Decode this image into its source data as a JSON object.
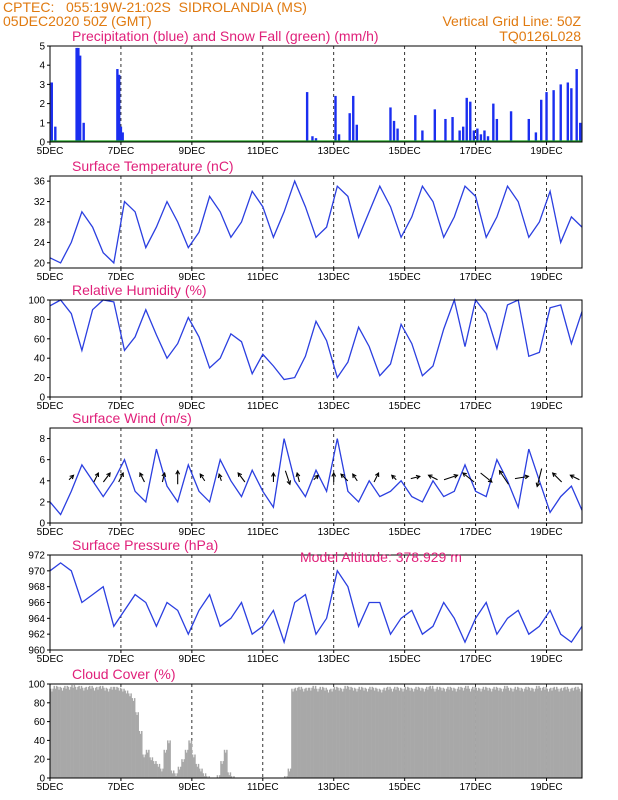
{
  "header": {
    "line1_left": "CPTEC:   055:19W-21:02S  SIDROLANDIA (MS)",
    "line2_left": "05DEC2020 50Z (GMT)",
    "line1_right": "Vertical Grid Line: 50Z",
    "line2_right": "TQ0126L028",
    "model_altitude": "Model Altitude: 378.929 m"
  },
  "colors": {
    "header": "#e07a10",
    "title": "#e0207a",
    "line": "#2b3fe0",
    "precip": "#1a2ef0",
    "snow": "#1aa01a",
    "cloud": "#a8a8a8",
    "arrow": "#000000"
  },
  "x_axis": {
    "ticks": [
      "5DEC",
      "7DEC",
      "9DEC",
      "11DEC",
      "13DEC",
      "15DEC",
      "17DEC",
      "19DEC"
    ],
    "range_days": [
      5,
      20
    ]
  },
  "chart_data": [
    {
      "type": "bar",
      "title": "Precipitation (blue) and Snow Fall (green) (mm/h)",
      "ylim": [
        0,
        5
      ],
      "yticks": [
        "0",
        "1",
        "2",
        "3",
        "4",
        "5"
      ],
      "series": [
        {
          "name": "Precipitation",
          "x": [
            5.05,
            5.15,
            5.75,
            5.8,
            5.85,
            5.95,
            6.9,
            6.95,
            7.0,
            7.05,
            12.25,
            12.4,
            12.5,
            13.05,
            13.15,
            13.45,
            13.55,
            13.65,
            14.6,
            14.7,
            14.8,
            15.3,
            15.5,
            15.85,
            16.15,
            16.35,
            16.55,
            16.65,
            16.75,
            16.85,
            16.95,
            17.05,
            17.15,
            17.25,
            17.35,
            17.5,
            17.6,
            18.0,
            18.5,
            18.7,
            18.85,
            19.0,
            19.2,
            19.4,
            19.6,
            19.7,
            19.85,
            19.95
          ],
          "values": [
            3.1,
            0.8,
            4.9,
            4.9,
            4.5,
            1.0,
            3.8,
            3.5,
            0.8,
            0.5,
            2.6,
            0.3,
            0.2,
            2.4,
            0.4,
            1.5,
            2.4,
            0.9,
            1.8,
            1.1,
            0.7,
            1.4,
            0.6,
            1.7,
            1.2,
            1.3,
            0.6,
            0.8,
            2.3,
            2.1,
            0.6,
            0.7,
            0.4,
            0.6,
            0.3,
            2.0,
            1.2,
            1.6,
            1.2,
            0.5,
            2.2,
            2.6,
            2.7,
            3.0,
            3.1,
            2.8,
            3.8,
            1.0
          ]
        },
        {
          "name": "Snow Fall",
          "x": [],
          "values": []
        }
      ]
    },
    {
      "type": "line",
      "title": "Surface Temperature (nC)",
      "ylim": [
        19,
        37
      ],
      "yticks": [
        "20",
        "24",
        "28",
        "32",
        "36"
      ],
      "x": [
        5.0,
        5.3,
        5.6,
        5.9,
        6.2,
        6.5,
        6.8,
        7.1,
        7.4,
        7.7,
        8.0,
        8.3,
        8.6,
        8.9,
        9.2,
        9.5,
        9.8,
        10.1,
        10.4,
        10.7,
        11.0,
        11.3,
        11.6,
        11.9,
        12.2,
        12.5,
        12.8,
        13.1,
        13.4,
        13.7,
        14.0,
        14.3,
        14.6,
        14.9,
        15.2,
        15.5,
        15.8,
        16.1,
        16.4,
        16.7,
        17.0,
        17.3,
        17.6,
        17.9,
        18.2,
        18.5,
        18.8,
        19.1,
        19.4,
        19.7,
        20.0
      ],
      "values": [
        21,
        20,
        24,
        30,
        27,
        22,
        20,
        32,
        30,
        23,
        27,
        32,
        28,
        23,
        26,
        33,
        30,
        25,
        28,
        34,
        31,
        25,
        30,
        36,
        31,
        25,
        27,
        35,
        33,
        25,
        30,
        35,
        31,
        25,
        29,
        35,
        32,
        25,
        29,
        35,
        33,
        25,
        29,
        35,
        32,
        25,
        28,
        34,
        24,
        29,
        27
      ]
    },
    {
      "type": "line",
      "title": "Relative Humidity (%)",
      "ylim": [
        0,
        100
      ],
      "yticks": [
        "0",
        "20",
        "40",
        "60",
        "80",
        "100"
      ],
      "x": [
        5.0,
        5.3,
        5.6,
        5.9,
        6.2,
        6.5,
        6.8,
        7.1,
        7.4,
        7.7,
        8.0,
        8.3,
        8.6,
        8.9,
        9.2,
        9.5,
        9.8,
        10.1,
        10.4,
        10.7,
        11.0,
        11.3,
        11.6,
        11.9,
        12.2,
        12.5,
        12.8,
        13.1,
        13.4,
        13.7,
        14.0,
        14.3,
        14.6,
        14.9,
        15.2,
        15.5,
        15.8,
        16.1,
        16.4,
        16.7,
        17.0,
        17.3,
        17.6,
        17.9,
        18.2,
        18.5,
        18.8,
        19.1,
        19.4,
        19.7,
        20.0
      ],
      "values": [
        94,
        100,
        86,
        48,
        90,
        100,
        98,
        48,
        62,
        90,
        64,
        40,
        55,
        82,
        62,
        30,
        40,
        65,
        57,
        24,
        44,
        32,
        18,
        20,
        42,
        78,
        58,
        20,
        36,
        72,
        52,
        22,
        34,
        75,
        55,
        22,
        32,
        70,
        100,
        52,
        100,
        86,
        50,
        95,
        100,
        42,
        46,
        92,
        95,
        55,
        88
      ]
    },
    {
      "type": "line",
      "title": "Surface Wind (m/s)",
      "ylim": [
        0,
        9
      ],
      "yticks": [
        "0",
        "2",
        "4",
        "6",
        "8"
      ],
      "x": [
        5.0,
        5.3,
        5.6,
        5.9,
        6.2,
        6.5,
        6.8,
        7.1,
        7.4,
        7.7,
        8.0,
        8.3,
        8.6,
        8.9,
        9.2,
        9.5,
        9.8,
        10.1,
        10.4,
        10.7,
        11.0,
        11.3,
        11.6,
        11.9,
        12.2,
        12.5,
        12.8,
        13.1,
        13.4,
        13.7,
        14.0,
        14.3,
        14.6,
        14.9,
        15.2,
        15.5,
        15.8,
        16.1,
        16.4,
        16.7,
        17.0,
        17.3,
        17.6,
        17.9,
        18.2,
        18.5,
        18.8,
        19.1,
        19.4,
        19.7,
        20.0
      ],
      "values": [
        2,
        0.8,
        3,
        5.5,
        4,
        2.5,
        4,
        6,
        3,
        2,
        7,
        3.5,
        2,
        5.5,
        3,
        2,
        6,
        4,
        2.5,
        5,
        3,
        1.5,
        8,
        4,
        2.5,
        5,
        3,
        8,
        3,
        2,
        4,
        2.5,
        3,
        4,
        2.5,
        2,
        4,
        2.5,
        3,
        5.5,
        3,
        2.5,
        6,
        4,
        1.5,
        7,
        4,
        1,
        2.5,
        3.5,
        1.2
      ],
      "arrows": {
        "x": [
          5.6,
          6.3,
          6.6,
          7.0,
          7.6,
          8.2,
          8.6,
          9.3,
          9.8,
          10.4,
          11.3,
          11.7,
          12.0,
          12.5,
          13.0,
          13.3,
          13.6,
          14.2,
          14.7,
          15.3,
          15.8,
          16.3,
          16.8,
          17.3,
          17.8,
          18.3,
          18.8,
          19.3,
          19.8
        ],
        "u": [
          1,
          1,
          1.5,
          1,
          -1,
          0.5,
          0,
          -1,
          -0.5,
          -1.5,
          0,
          1,
          -0.5,
          1,
          0,
          -1.5,
          -1,
          1,
          -1,
          2,
          -2,
          3,
          -2.5,
          2.5,
          -2,
          3,
          -1,
          -2,
          -2
        ],
        "v": [
          1,
          2,
          2,
          2,
          2,
          2,
          3,
          1.5,
          1.5,
          2,
          2,
          -3,
          2,
          1,
          2,
          1.5,
          1.5,
          2,
          1,
          0.5,
          1,
          1,
          2,
          -2,
          3,
          0.5,
          -4,
          2,
          1
        ]
      }
    },
    {
      "type": "line",
      "title": "Surface Pressure (hPa)",
      "ylim": [
        960,
        972
      ],
      "yticks": [
        "960",
        "962",
        "964",
        "966",
        "968",
        "970",
        "972"
      ],
      "x": [
        5.0,
        5.3,
        5.6,
        5.9,
        6.2,
        6.5,
        6.8,
        7.1,
        7.4,
        7.7,
        8.0,
        8.3,
        8.6,
        8.9,
        9.2,
        9.5,
        9.8,
        10.1,
        10.4,
        10.7,
        11.0,
        11.3,
        11.6,
        11.9,
        12.2,
        12.5,
        12.8,
        13.1,
        13.4,
        13.7,
        14.0,
        14.3,
        14.6,
        14.9,
        15.2,
        15.5,
        15.8,
        16.1,
        16.4,
        16.7,
        17.0,
        17.3,
        17.6,
        17.9,
        18.2,
        18.5,
        18.8,
        19.1,
        19.4,
        19.7,
        20.0
      ],
      "values": [
        970,
        971,
        970,
        966,
        967,
        968,
        963,
        965,
        967,
        966,
        963,
        966,
        965,
        962,
        965,
        967,
        963,
        964,
        966,
        962,
        963,
        965,
        961,
        966,
        967,
        962,
        964,
        970,
        968,
        963,
        966,
        966,
        962,
        964,
        965,
        962,
        963,
        966,
        964,
        961,
        964,
        966,
        962,
        964,
        965,
        962,
        963,
        965,
        962,
        961,
        963
      ]
    },
    {
      "type": "area",
      "title": "Cloud Cover (%)",
      "ylim": [
        0,
        100
      ],
      "yticks": [
        "0",
        "20",
        "40",
        "60",
        "80",
        "100"
      ],
      "x": [
        5.0,
        5.1,
        5.2,
        5.3,
        5.4,
        5.5,
        5.6,
        5.7,
        5.8,
        5.9,
        6.0,
        6.1,
        6.2,
        6.3,
        6.4,
        6.5,
        6.6,
        6.7,
        6.8,
        6.9,
        7.0,
        7.1,
        7.2,
        7.3,
        7.4,
        7.5,
        7.6,
        7.7,
        7.8,
        7.9,
        8.0,
        8.1,
        8.2,
        8.3,
        8.4,
        8.5,
        8.6,
        8.7,
        8.8,
        8.9,
        9.0,
        9.1,
        9.2,
        9.3,
        9.4,
        9.5,
        9.6,
        9.7,
        9.8,
        9.9,
        10.0,
        10.1,
        10.2,
        10.3,
        10.4,
        10.5,
        10.6,
        10.7,
        10.8,
        10.9,
        11.0,
        11.1,
        11.2,
        11.3,
        11.4,
        11.5,
        11.6,
        11.7,
        11.8,
        11.9,
        12.0,
        12.1,
        12.2,
        12.3,
        12.4,
        12.5,
        12.6,
        12.7,
        12.8,
        12.9,
        13.0,
        13.1,
        13.2,
        13.3,
        13.4,
        13.5,
        13.6,
        13.7,
        13.8,
        13.9,
        14.0,
        14.1,
        14.2,
        14.3,
        14.4,
        14.5,
        14.6,
        14.7,
        14.8,
        14.9,
        15.0,
        15.1,
        15.2,
        15.3,
        15.4,
        15.5,
        15.6,
        15.7,
        15.8,
        15.9,
        16.0,
        16.1,
        16.2,
        16.3,
        16.4,
        16.5,
        16.6,
        16.7,
        16.8,
        16.9,
        17.0,
        17.1,
        17.2,
        17.3,
        17.4,
        17.5,
        17.6,
        17.7,
        17.8,
        17.9,
        18.0,
        18.1,
        18.2,
        18.3,
        18.4,
        18.5,
        18.6,
        18.7,
        18.8,
        18.9,
        19.0,
        19.1,
        19.2,
        19.3,
        19.4,
        19.5,
        19.6,
        19.7,
        19.8,
        19.9
      ],
      "values": [
        95,
        98,
        97,
        96,
        98,
        97,
        99,
        97,
        98,
        96,
        97,
        98,
        96,
        97,
        98,
        96,
        95,
        97,
        97,
        96,
        95,
        93,
        90,
        85,
        70,
        50,
        25,
        30,
        22,
        18,
        15,
        10,
        30,
        40,
        8,
        5,
        12,
        20,
        30,
        40,
        25,
        15,
        10,
        5,
        2,
        0,
        0,
        3,
        18,
        30,
        6,
        2,
        0,
        0,
        0,
        0,
        0,
        0,
        0,
        0,
        0,
        0,
        0,
        0,
        0,
        0,
        2,
        10,
        95,
        96,
        97,
        95,
        96,
        96,
        98,
        95,
        97,
        96,
        94,
        95,
        97,
        96,
        95,
        98,
        97,
        96,
        95,
        97,
        96,
        95,
        97,
        96,
        95,
        94,
        96,
        97,
        95,
        97,
        96,
        95,
        97,
        96,
        95,
        97,
        96,
        95,
        97,
        98,
        95,
        97,
        96,
        95,
        97,
        96,
        95,
        97,
        96,
        98,
        95,
        97,
        96,
        95,
        97,
        96,
        95,
        97,
        96,
        95,
        98,
        96,
        95,
        97,
        96,
        95,
        97,
        96,
        95,
        98,
        96,
        97,
        95,
        96,
        97,
        95,
        96,
        97,
        95,
        96,
        97,
        95
      ]
    }
  ]
}
